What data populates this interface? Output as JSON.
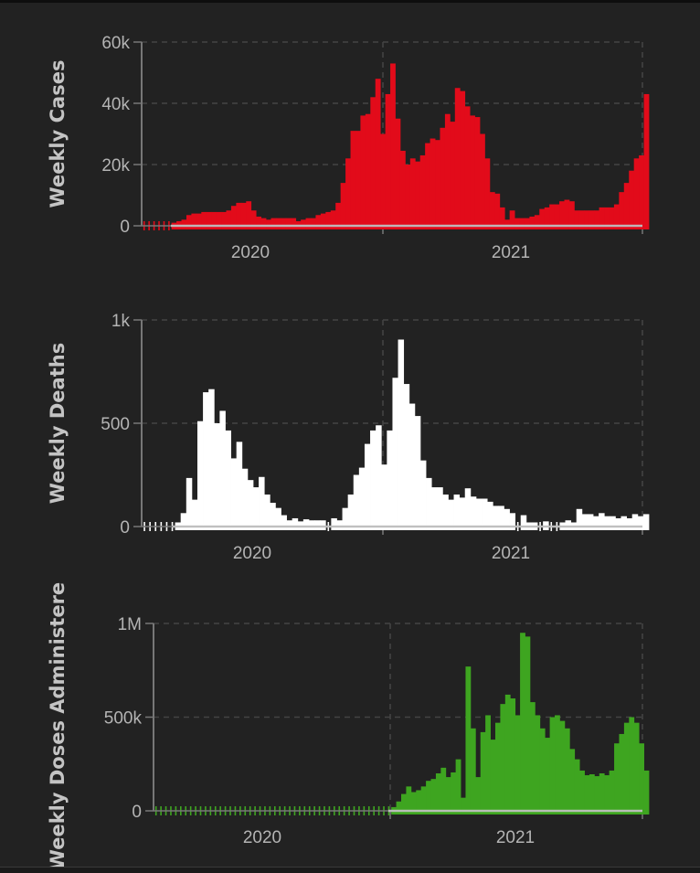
{
  "chart_data": [
    {
      "type": "bar",
      "title": "",
      "ylabel": "Weekly Cases",
      "xlabel": "",
      "color": "#e20b1a",
      "ylim": [
        0,
        60000
      ],
      "yticks": [
        {
          "value": 0,
          "label": "0"
        },
        {
          "value": 20000,
          "label": "20k"
        },
        {
          "value": 40000,
          "label": "40k"
        },
        {
          "value": 60000,
          "label": "60k"
        }
      ],
      "xticks": [
        "2020",
        "2021"
      ],
      "grid": true,
      "values": [
        0,
        0,
        0,
        0,
        0,
        0,
        1000,
        1500,
        2000,
        3500,
        4000,
        4000,
        4500,
        4500,
        4500,
        4500,
        4500,
        5000,
        6500,
        7500,
        7500,
        8000,
        5000,
        3000,
        2500,
        2000,
        2500,
        2500,
        2500,
        2500,
        2500,
        1500,
        2000,
        2500,
        2500,
        3500,
        4000,
        4500,
        5000,
        7500,
        14000,
        22000,
        31000,
        31000,
        36000,
        36500,
        42000,
        48000,
        30000,
        43000,
        53000,
        35000,
        24500,
        20000,
        22000,
        21000,
        23000,
        27000,
        28500,
        28000,
        32000,
        36500,
        34000,
        45000,
        44000,
        39000,
        36000,
        35500,
        30000,
        22000,
        11000,
        10500,
        6000,
        2000,
        5000,
        2500,
        2500,
        2500,
        3000,
        3500,
        5500,
        6000,
        7000,
        7000,
        8000,
        8500,
        8000,
        5000,
        5000,
        5000,
        5000,
        5000,
        6000,
        6000,
        6000,
        7000,
        11000,
        14000,
        18000,
        22000,
        23000,
        43000
      ]
    },
    {
      "type": "bar",
      "title": "",
      "ylabel": "Weekly Deaths",
      "xlabel": "",
      "color": "#ffffff",
      "ylim": [
        0,
        1000
      ],
      "yticks": [
        {
          "value": 0,
          "label": "0"
        },
        {
          "value": 500,
          "label": "500"
        },
        {
          "value": 1000,
          "label": "1k"
        }
      ],
      "xticks": [
        "2020",
        "2021"
      ],
      "grid": true,
      "values": [
        0,
        0,
        0,
        0,
        0,
        0,
        20,
        65,
        235,
        130,
        510,
        650,
        665,
        500,
        560,
        465,
        330,
        410,
        280,
        225,
        190,
        240,
        155,
        115,
        90,
        55,
        30,
        40,
        25,
        35,
        30,
        30,
        30,
        0,
        40,
        30,
        90,
        155,
        250,
        285,
        400,
        465,
        490,
        300,
        465,
        720,
        905,
        690,
        595,
        535,
        320,
        235,
        190,
        190,
        155,
        130,
        155,
        140,
        185,
        145,
        135,
        135,
        120,
        100,
        100,
        85,
        65,
        0,
        55,
        20,
        20,
        0,
        25,
        0,
        0,
        20,
        30,
        20,
        85,
        60,
        60,
        50,
        65,
        50,
        50,
        40,
        50,
        40,
        60,
        50,
        60
      ]
    },
    {
      "type": "bar",
      "title": "",
      "ylabel": "Weekly Doses Administered",
      "xlabel": "",
      "color": "#3ea520",
      "ylim": [
        0,
        1000000
      ],
      "yticks": [
        {
          "value": 0,
          "label": "0"
        },
        {
          "value": 500000,
          "label": "500k"
        },
        {
          "value": 1000000,
          "label": "1M"
        }
      ],
      "xticks": [
        "2020",
        "2021"
      ],
      "grid": true,
      "values": [
        0,
        0,
        0,
        0,
        0,
        0,
        0,
        0,
        0,
        0,
        0,
        0,
        0,
        0,
        0,
        0,
        0,
        0,
        0,
        0,
        0,
        0,
        0,
        0,
        0,
        0,
        0,
        0,
        0,
        0,
        0,
        0,
        0,
        0,
        0,
        0,
        0,
        0,
        0,
        0,
        0,
        0,
        0,
        0,
        0,
        0,
        0,
        0,
        20000,
        50000,
        90000,
        130000,
        100000,
        110000,
        130000,
        160000,
        170000,
        200000,
        230000,
        180000,
        205000,
        275000,
        70000,
        770000,
        440000,
        180000,
        420000,
        510000,
        380000,
        470000,
        570000,
        620000,
        600000,
        510000,
        950000,
        930000,
        580000,
        510000,
        440000,
        390000,
        500000,
        510000,
        480000,
        440000,
        330000,
        275000,
        215000,
        190000,
        195000,
        185000,
        200000,
        190000,
        215000,
        360000,
        410000,
        470000,
        500000,
        470000,
        360000,
        215000
      ]
    }
  ]
}
